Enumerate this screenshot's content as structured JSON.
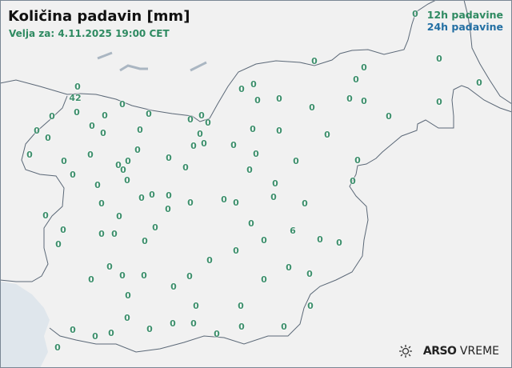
{
  "header": {
    "title": "Količina padavin [mm]",
    "subtitle": "Velja za: 4.11.2025 19:00 CET"
  },
  "legend": {
    "item_12h": {
      "label": "12h padavine",
      "color": "#2e8a61"
    },
    "item_24h": {
      "label": "24h padavine",
      "color": "#236fa3"
    }
  },
  "stations": {
    "values": [
      "0",
      "0",
      "42",
      "0",
      "0",
      "0",
      "0",
      "0",
      "0",
      "0",
      "0",
      "0",
      "0",
      "0",
      "0",
      "0",
      "0",
      "0",
      "0",
      "0",
      "0",
      "0",
      "0",
      "0",
      "0",
      "0",
      "0",
      "0",
      "0",
      "0",
      "0",
      "0",
      "0",
      "0",
      "0",
      "0",
      "0",
      "0",
      "0",
      "0",
      "0",
      "0",
      "0",
      "0",
      "0",
      "0",
      "0",
      "0",
      "0",
      "0",
      "0",
      "0",
      "0",
      "0",
      "0",
      "0",
      "0",
      "0",
      "0",
      "0",
      "0",
      "0",
      "0",
      "0",
      "0",
      "0",
      "0",
      "0",
      "0",
      "0",
      "0",
      "0",
      "0",
      "0",
      "0",
      "0",
      "0",
      "0",
      "0",
      "0",
      "0",
      "0",
      "0",
      "0",
      "0",
      "0",
      "0",
      "0",
      "0",
      "0",
      "0",
      "0",
      "0",
      "0",
      "0",
      "0",
      "0",
      "6",
      "0",
      "0",
      "0",
      "0",
      "0",
      "0"
    ]
  },
  "branding": {
    "logo_bold": "ARSO",
    "logo_text": "VREME",
    "logo_icon": "sun-cloud-icon"
  },
  "colors": {
    "border": "#5b6877",
    "background": "#f1f1f1",
    "sea": "#dfe6ec"
  }
}
